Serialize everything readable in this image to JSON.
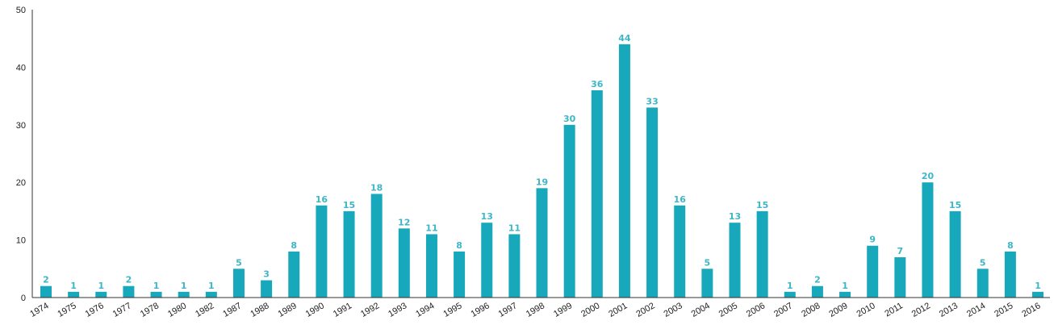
{
  "colors": {
    "bar": "#17A9BB",
    "label": "#3DB6C6",
    "axis": "#333333"
  },
  "chart_data": {
    "type": "bar",
    "title": "",
    "xlabel": "",
    "ylabel": "",
    "ylim": [
      0,
      50
    ],
    "yticks": [
      "0",
      "10",
      "20",
      "30",
      "40",
      "50"
    ],
    "grid": false,
    "categories": [
      "1974",
      "1975",
      "1976",
      "1977",
      "1978",
      "1980",
      "1982",
      "1987",
      "1988",
      "1989",
      "1990",
      "1991",
      "1992",
      "1993",
      "1994",
      "1995",
      "1996",
      "1997",
      "1998",
      "1999",
      "2000",
      "2001",
      "2002",
      "2003",
      "2004",
      "2005",
      "2006",
      "2007",
      "2008",
      "2009",
      "2010",
      "2011",
      "2012",
      "2013",
      "2014",
      "2015",
      "2016"
    ],
    "values": [
      2,
      1,
      1,
      2,
      1,
      1,
      1,
      5,
      3,
      8,
      16,
      15,
      18,
      12,
      11,
      8,
      13,
      11,
      19,
      30,
      36,
      44,
      33,
      16,
      5,
      13,
      15,
      1,
      2,
      1,
      9,
      7,
      20,
      15,
      5,
      8,
      1
    ]
  }
}
